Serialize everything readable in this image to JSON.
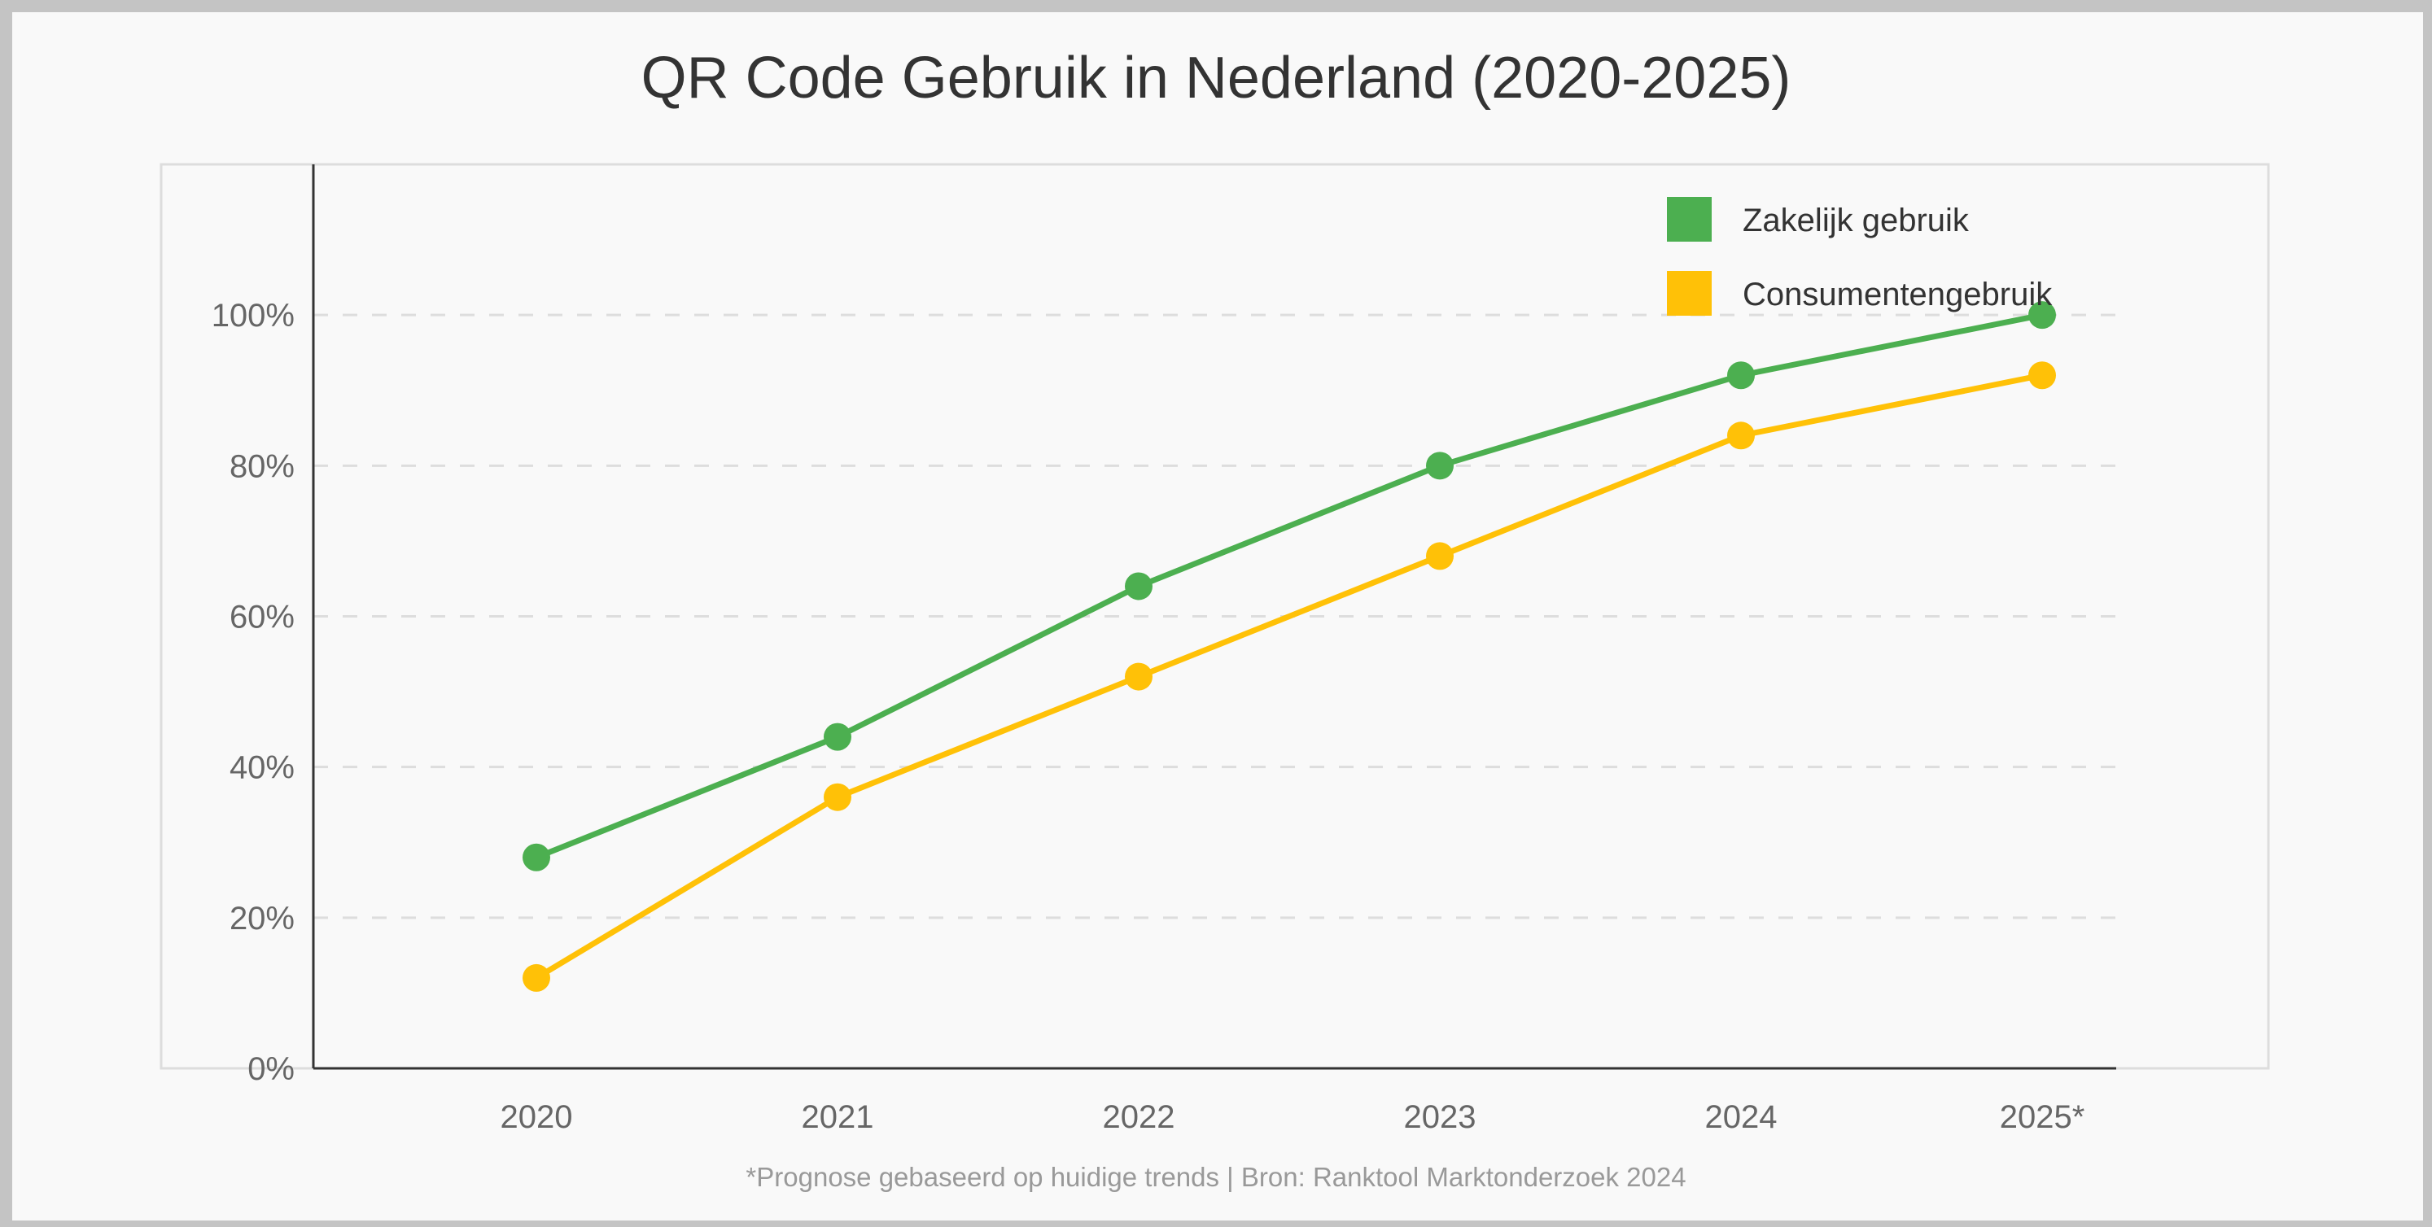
{
  "chart_data": {
    "type": "line",
    "title": "QR Code Gebruik in Nederland (2020-2025)",
    "categories": [
      "2020",
      "2021",
      "2022",
      "2023",
      "2024",
      "2025*"
    ],
    "series": [
      {
        "name": "Zakelijk gebruik",
        "color": "#4caf50",
        "values": [
          28,
          44,
          64,
          80,
          92,
          100
        ]
      },
      {
        "name": "Consumentengebruik",
        "color": "#ffc107",
        "values": [
          12,
          36,
          52,
          68,
          84,
          92
        ]
      }
    ],
    "yticks": [
      "0%",
      "20%",
      "40%",
      "60%",
      "80%",
      "100%"
    ],
    "ytick_values": [
      0,
      20,
      40,
      60,
      80,
      100
    ],
    "ylim": [
      0,
      120
    ],
    "grid": true,
    "legend": "top-right",
    "footnote": "*Prognose gebaseerd op huidige trends | Bron: Ranktool Marktonderzoek 2024"
  }
}
